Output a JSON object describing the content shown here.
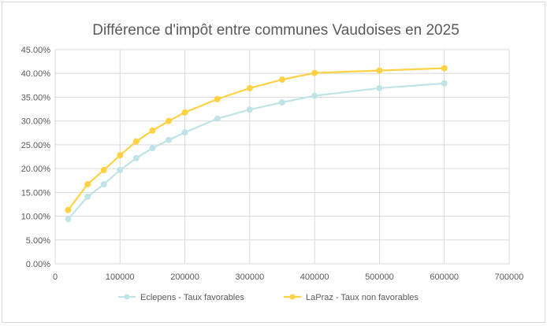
{
  "chart_data": {
    "type": "line",
    "title": "Différence d'impôt entre communes Vaudoises en 2025",
    "xlabel": "",
    "ylabel": "",
    "xlim": [
      0,
      700000
    ],
    "ylim": [
      0,
      45
    ],
    "x_ticks": [
      "0",
      "100000",
      "200000",
      "300000",
      "400000",
      "500000",
      "600000",
      "700000"
    ],
    "y_ticks": [
      "0.00%",
      "5.00%",
      "10.00%",
      "15.00%",
      "20.00%",
      "25.00%",
      "30.00%",
      "35.00%",
      "40.00%",
      "45.00%"
    ],
    "grid": true,
    "legend_position": "bottom",
    "x": [
      20000,
      50000,
      75000,
      100000,
      125000,
      150000,
      175000,
      200000,
      250000,
      300000,
      350000,
      400000,
      500000,
      600000
    ],
    "series": [
      {
        "name": "Eclepens - Taux favorables",
        "color": "#bfe3e6",
        "values": [
          9.4,
          14.1,
          16.7,
          19.7,
          22.2,
          24.3,
          26.0,
          27.6,
          30.5,
          32.4,
          33.9,
          35.3,
          36.9,
          37.9
        ]
      },
      {
        "name": "LaPraz - Taux non favorables",
        "color": "#ffd145",
        "values": [
          11.3,
          16.7,
          19.7,
          22.8,
          25.7,
          28.0,
          30.0,
          31.8,
          34.6,
          36.9,
          38.7,
          40.1,
          40.6,
          41.1
        ]
      }
    ]
  }
}
